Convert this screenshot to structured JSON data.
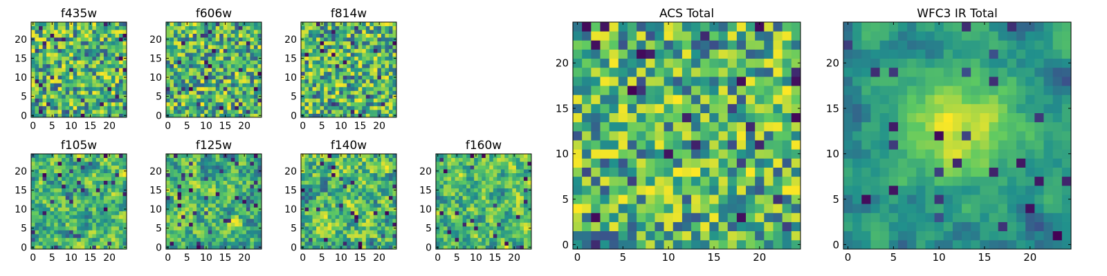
{
  "figure": {
    "background": "#ffffff",
    "axes_color": "#000000"
  },
  "colormap": {
    "name": "viridis",
    "stops": [
      "#440154",
      "#3b528b",
      "#21918c",
      "#5ec962",
      "#fde725"
    ]
  },
  "chart_data": [
    {
      "type": "heatmap",
      "title": "f435w",
      "size": 25,
      "xlim": [
        0,
        24
      ],
      "ylim": [
        0,
        24
      ],
      "xticks": [
        0,
        5,
        10,
        15,
        20
      ],
      "yticks": [
        0,
        5,
        10,
        15,
        20
      ],
      "xlabel": "",
      "ylabel": "",
      "vmin": 0,
      "vmax": 1,
      "pattern": "uniform noise",
      "seed": 11,
      "smooth": 0
    },
    {
      "type": "heatmap",
      "title": "f606w",
      "size": 25,
      "xlim": [
        0,
        24
      ],
      "ylim": [
        0,
        24
      ],
      "xticks": [
        0,
        5,
        10,
        15,
        20
      ],
      "yticks": [
        0,
        5,
        10,
        15,
        20
      ],
      "xlabel": "",
      "ylabel": "",
      "vmin": 0,
      "vmax": 1,
      "pattern": "uniform noise",
      "seed": 23,
      "smooth": 0
    },
    {
      "type": "heatmap",
      "title": "f814w",
      "size": 25,
      "xlim": [
        0,
        24
      ],
      "ylim": [
        0,
        24
      ],
      "xticks": [
        0,
        5,
        10,
        15,
        20
      ],
      "yticks": [
        0,
        5,
        10,
        15,
        20
      ],
      "xlabel": "",
      "ylabel": "",
      "vmin": 0,
      "vmax": 1,
      "pattern": "uniform noise",
      "seed": 37,
      "smooth": 0
    },
    {
      "type": "heatmap",
      "title": "f105w",
      "size": 25,
      "xlim": [
        0,
        24
      ],
      "ylim": [
        0,
        24
      ],
      "xticks": [
        0,
        5,
        10,
        15,
        20
      ],
      "yticks": [
        0,
        5,
        10,
        15,
        20
      ],
      "xlabel": "",
      "ylabel": "",
      "vmin": 0,
      "vmax": 1,
      "pattern": "smoothed noise",
      "seed": 41,
      "smooth": 1
    },
    {
      "type": "heatmap",
      "title": "f125w",
      "size": 25,
      "xlim": [
        0,
        24
      ],
      "ylim": [
        0,
        24
      ],
      "xticks": [
        0,
        5,
        10,
        15,
        20
      ],
      "yticks": [
        0,
        5,
        10,
        15,
        20
      ],
      "xlabel": "",
      "ylabel": "",
      "vmin": 0,
      "vmax": 1,
      "pattern": "smoothed noise",
      "seed": 53,
      "smooth": 1
    },
    {
      "type": "heatmap",
      "title": "f140w",
      "size": 25,
      "xlim": [
        0,
        24
      ],
      "ylim": [
        0,
        24
      ],
      "xticks": [
        0,
        5,
        10,
        15,
        20
      ],
      "yticks": [
        0,
        5,
        10,
        15,
        20
      ],
      "xlabel": "",
      "ylabel": "",
      "vmin": 0,
      "vmax": 1,
      "pattern": "smoothed noise",
      "seed": 67,
      "smooth": 1
    },
    {
      "type": "heatmap",
      "title": "f160w",
      "size": 25,
      "xlim": [
        0,
        24
      ],
      "ylim": [
        0,
        24
      ],
      "xticks": [
        0,
        5,
        10,
        15,
        20
      ],
      "yticks": [
        0,
        5,
        10,
        15,
        20
      ],
      "xlabel": "",
      "ylabel": "",
      "vmin": 0,
      "vmax": 1,
      "pattern": "smoothed noise",
      "seed": 79,
      "smooth": 1
    },
    {
      "type": "heatmap",
      "title": "ACS Total",
      "size": 25,
      "xlim": [
        0,
        24
      ],
      "ylim": [
        0,
        24
      ],
      "xticks": [
        0,
        5,
        10,
        15,
        20
      ],
      "yticks": [
        0,
        5,
        10,
        15,
        20
      ],
      "xlabel": "",
      "ylabel": "",
      "vmin": 0,
      "vmax": 1,
      "pattern": "uniform noise",
      "seed": 97,
      "smooth": 0
    },
    {
      "type": "heatmap",
      "title": "WFC3 IR Total",
      "size": 25,
      "xlim": [
        0,
        24
      ],
      "ylim": [
        0,
        24
      ],
      "xticks": [
        0,
        5,
        10,
        15,
        20
      ],
      "yticks": [
        0,
        5,
        10,
        15,
        20
      ],
      "xlabel": "",
      "ylabel": "",
      "vmin": 0,
      "vmax": 1,
      "pattern": "smoothed noise with central peak",
      "seed": 113,
      "smooth": 2
    }
  ]
}
